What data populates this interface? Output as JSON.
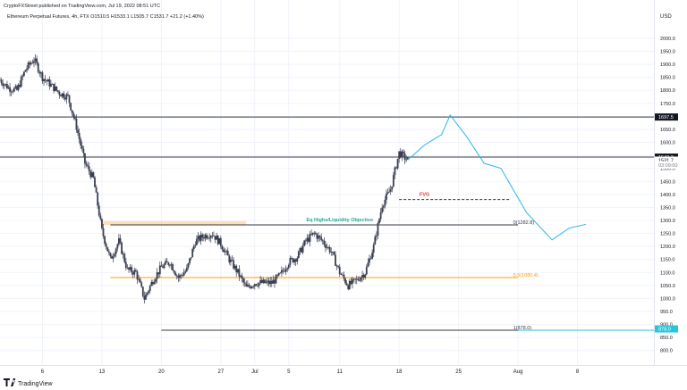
{
  "header": {
    "publish_line": "CryptoFXStreet published on TradingView.com, Jul 19, 2022 08:51 UTC",
    "symbol_line": "Ethereum Perpetual Futures, 4h, FTX  O1510.5  H1533.1  L1505.7  C1531.7  +21.2 (+1.40%)"
  },
  "footer": {
    "brand": "TradingView"
  },
  "colors": {
    "up": "#26a69a",
    "down": "#ef5350",
    "candle": "#3a3f51",
    "projection": "#29b6f6",
    "fvg": "#e53935",
    "fib05": "#ff9800",
    "zone": "#ffd9a8",
    "current": "#2962ff",
    "level_1883": "#26c6da"
  },
  "chart_data": {
    "type": "candlestick",
    "currency": "USD",
    "ylim": [
      775,
      2065
    ],
    "y_ticks": [
      800,
      850,
      900,
      950,
      1000,
      1050,
      1100,
      1150,
      1200,
      1250,
      1300,
      1350,
      1400,
      1450,
      1500,
      1550,
      1600,
      1650,
      1700,
      1750,
      1800,
      1850,
      1900,
      1950,
      2000
    ],
    "y_tick_labels": [
      "800.0",
      "850.0",
      "900.0",
      "950.0",
      "1000.0",
      "1050.0",
      "1100.0",
      "1150.0",
      "1200.0",
      "1250.0",
      "1300.0",
      "1350.0",
      "1400.0",
      "1450.0",
      "1500.0",
      "1550.0",
      "1600.0",
      "1650.0",
      "1700.0",
      "1750.0",
      "1800.0",
      "1850.0",
      "1900.0",
      "1950.0",
      "2000.0"
    ],
    "x_ticks": [
      {
        "label": "6",
        "date": "2022-06-06"
      },
      {
        "label": "13",
        "date": "2022-06-13"
      },
      {
        "label": "20",
        "date": "2022-06-20"
      },
      {
        "label": "27",
        "date": "2022-06-27"
      },
      {
        "label": "Jul",
        "date": "2022-07-01"
      },
      {
        "label": "5",
        "date": "2022-07-05"
      },
      {
        "label": "11",
        "date": "2022-07-11"
      },
      {
        "label": "18",
        "date": "2022-07-18"
      },
      {
        "label": "25",
        "date": "2022-07-25"
      },
      {
        "label": "Aug",
        "date": "2022-08-01"
      },
      {
        "label": "8",
        "date": "2022-08-08"
      }
    ],
    "x_range": [
      "2022-06-01",
      "2022-08-17"
    ],
    "price_path": [
      [
        "2022-06-01",
        1840
      ],
      [
        "2022-06-02",
        1810
      ],
      [
        "2022-06-03",
        1800
      ],
      [
        "2022-06-04",
        1880
      ],
      [
        "2022-06-05",
        1920
      ],
      [
        "2022-06-06",
        1850
      ],
      [
        "2022-06-07",
        1820
      ],
      [
        "2022-06-08",
        1790
      ],
      [
        "2022-06-09",
        1775
      ],
      [
        "2022-06-10",
        1660
      ],
      [
        "2022-06-11",
        1520
      ],
      [
        "2022-06-12",
        1460
      ],
      [
        "2022-06-13",
        1260
      ],
      [
        "2022-06-14",
        1150
      ],
      [
        "2022-06-15",
        1220
      ],
      [
        "2022-06-16",
        1110
      ],
      [
        "2022-06-17",
        1100
      ],
      [
        "2022-06-18",
        1000
      ],
      [
        "2022-06-19",
        1070
      ],
      [
        "2022-06-20",
        1120
      ],
      [
        "2022-06-21",
        1140
      ],
      [
        "2022-06-22",
        1080
      ],
      [
        "2022-06-23",
        1110
      ],
      [
        "2022-06-24",
        1220
      ],
      [
        "2022-06-25",
        1240
      ],
      [
        "2022-06-26",
        1250
      ],
      [
        "2022-06-27",
        1210
      ],
      [
        "2022-06-28",
        1150
      ],
      [
        "2022-06-29",
        1100
      ],
      [
        "2022-06-30",
        1040
      ],
      [
        "2022-07-01",
        1060
      ],
      [
        "2022-07-02",
        1060
      ],
      [
        "2022-07-03",
        1060
      ],
      [
        "2022-07-04",
        1090
      ],
      [
        "2022-07-05",
        1140
      ],
      [
        "2022-07-06",
        1160
      ],
      [
        "2022-07-07",
        1220
      ],
      [
        "2022-07-08",
        1250
      ],
      [
        "2022-07-09",
        1220
      ],
      [
        "2022-07-10",
        1180
      ],
      [
        "2022-07-11",
        1100
      ],
      [
        "2022-07-12",
        1050
      ],
      [
        "2022-07-13",
        1070
      ],
      [
        "2022-07-14",
        1100
      ],
      [
        "2022-07-15",
        1200
      ],
      [
        "2022-07-16",
        1360
      ],
      [
        "2022-07-17",
        1420
      ],
      [
        "2022-07-18",
        1560
      ],
      [
        "2022-07-19",
        1531.7
      ]
    ],
    "projection_path": [
      [
        "2022-07-19",
        1531.7
      ],
      [
        "2022-07-21",
        1590
      ],
      [
        "2022-07-23",
        1630
      ],
      [
        "2022-07-24",
        1705
      ],
      [
        "2022-07-26",
        1620
      ],
      [
        "2022-07-28",
        1520
      ],
      [
        "2022-07-30",
        1500
      ],
      [
        "2022-08-02",
        1330
      ],
      [
        "2022-08-05",
        1225
      ],
      [
        "2022-08-07",
        1270
      ],
      [
        "2022-08-09",
        1285
      ]
    ],
    "levels": [
      {
        "price": 1697.5,
        "label": "1697.5",
        "style": "solid",
        "color": "#363a45",
        "start": "2022-06-01"
      },
      {
        "price": 1543.3,
        "label": "1543.3",
        "style": "solid",
        "color": "#363a45",
        "start": "2022-06-01"
      },
      {
        "price": 1282.8,
        "label": "0(1282.8)",
        "style": "solid",
        "color": "#363a45",
        "start": "2022-06-14"
      },
      {
        "price": 1080.4,
        "label": "0.5(1080.4)",
        "style": "solid",
        "color": "#ff9800",
        "start": "2022-06-14"
      },
      {
        "price": 878.0,
        "label": "1(878.0)",
        "style": "solid",
        "color": "#363a45",
        "start": "2022-06-20"
      },
      {
        "price": 1380,
        "label": "",
        "style": "dashed",
        "color": "#363a45",
        "start": "2022-07-18"
      }
    ],
    "price_labels": [
      {
        "price": 1697.5,
        "text": "1697.5",
        "bg": "#131722",
        "fg": "#ffffff"
      },
      {
        "price": 1543.3,
        "text": "1543.3",
        "bg": "#131722",
        "fg": "#ffffff"
      },
      {
        "price": 1531.7,
        "text": "1531.7",
        "bg": "#ffffff",
        "fg": "#131722"
      },
      {
        "price": 1513,
        "text": "03:09:00",
        "bg": "#ffffff",
        "fg": "#787b86"
      },
      {
        "price": 883,
        "text": "878.0",
        "bg": "#26c6da",
        "fg": "#ffffff"
      }
    ],
    "annotations": [
      {
        "text": "FVG",
        "date": "2022-07-21",
        "price": 1395,
        "color": "#e53935"
      },
      {
        "text": "Eq Highs/Liquidity Objective",
        "date": "2022-07-11",
        "price": 1297,
        "color": "#26a69a"
      }
    ],
    "zone": {
      "from": "2022-06-13",
      "to": "2022-06-30",
      "low": 1282.8,
      "high": 1297
    }
  }
}
